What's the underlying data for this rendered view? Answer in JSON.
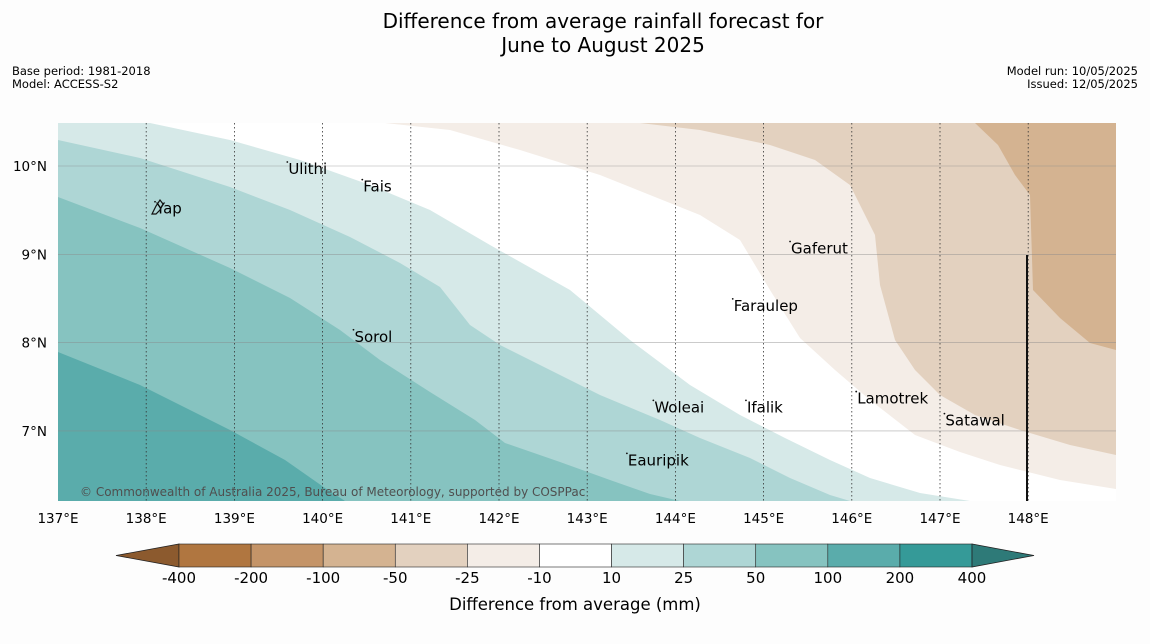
{
  "title_line1": "Difference from average rainfall forecast for",
  "title_line2": "June to August 2025",
  "base_period": "Base period: 1981-2018",
  "model": "Model: ACCESS-S2",
  "model_run": "Model run: 10/05/2025",
  "issued": "Issued: 12/05/2025",
  "credit": "© Commonwealth of Australia 2025, Bureau of Meteorology, supported by COSPPac",
  "places": [
    {
      "name": "Ulithi",
      "lon": 139.6,
      "lat": 10.0
    },
    {
      "name": "Fais",
      "lon": 140.45,
      "lat": 9.8
    },
    {
      "name": "Yap",
      "lon": 138.1,
      "lat": 9.55
    },
    {
      "name": "Gaferut",
      "lon": 145.3,
      "lat": 9.1
    },
    {
      "name": "Faraulep",
      "lon": 144.65,
      "lat": 8.45
    },
    {
      "name": "Sorol",
      "lon": 140.35,
      "lat": 8.1
    },
    {
      "name": "Lamotrek",
      "lon": 146.05,
      "lat": 7.4
    },
    {
      "name": "Woleai",
      "lon": 143.75,
      "lat": 7.3
    },
    {
      "name": "Ifalik",
      "lon": 144.8,
      "lat": 7.3
    },
    {
      "name": "Satawal",
      "lon": 147.05,
      "lat": 7.15
    },
    {
      "name": "Eauripik",
      "lon": 143.45,
      "lat": 6.7
    }
  ],
  "lon_ticks": [
    "137°E",
    "138°E",
    "139°E",
    "140°E",
    "141°E",
    "142°E",
    "143°E",
    "144°E",
    "145°E",
    "146°E",
    "147°E",
    "148°E"
  ],
  "lat_ticks": [
    "10°N",
    "9°N",
    "8°N",
    "7°N"
  ],
  "colorbar": {
    "title": "Difference from average (mm)",
    "labels": [
      "-400",
      "-200",
      "-100",
      "-50",
      "-25",
      "-10",
      "10",
      "25",
      "50",
      "100",
      "200",
      "400"
    ],
    "colors": [
      "#8c5a2e",
      "#b07640",
      "#c49468",
      "#d4b391",
      "#e3d1bf",
      "#f4ede7",
      "#ffffff",
      "#d6e9e8",
      "#aed6d5",
      "#86c3c0",
      "#5aacab",
      "#359a98",
      "#2e7a78"
    ]
  }
}
